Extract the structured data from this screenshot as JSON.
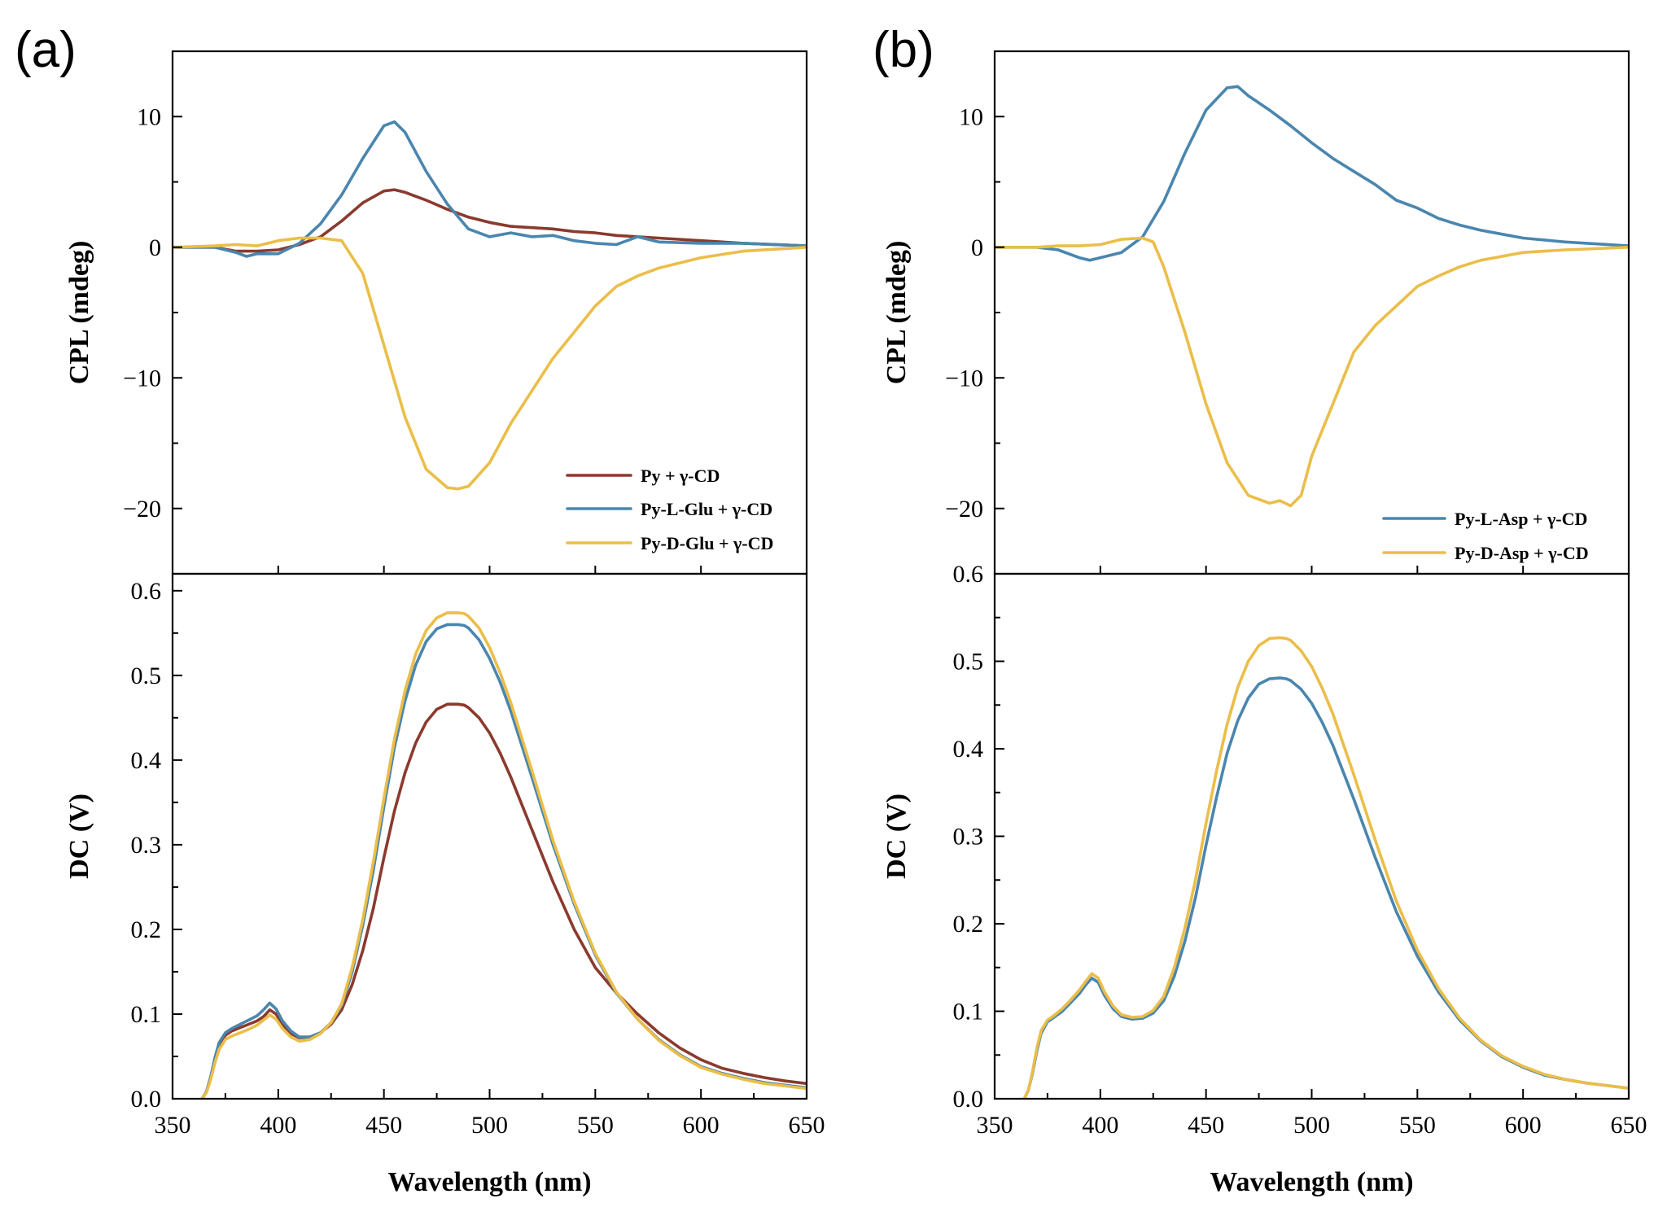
{
  "colors": {
    "py": "#8B3A2E",
    "L": "#4A86AE",
    "D": "#EBBE49"
  },
  "chart_data": [
    {
      "panel": "(a)",
      "type": "line",
      "xlabel": "Wavelength (nm)",
      "xlim": [
        350,
        650
      ],
      "xticks": [
        350,
        400,
        450,
        500,
        550,
        600,
        650
      ],
      "top": {
        "ylabel": "CPL (mdeg)",
        "ylim": [
          -25,
          15
        ],
        "yticks": [
          10,
          0,
          -10,
          -20
        ],
        "ytick_labels": [
          "10",
          "0",
          "−10",
          "−20"
        ],
        "legend": [
          "Py + γ-CD",
          "Py-L-Glu + γ-CD",
          "Py-D-Glu + γ-CD"
        ],
        "series": [
          {
            "name": "Py + γ-CD",
            "color": "py",
            "x": [
              350,
              370,
              380,
              390,
              400,
              410,
              420,
              430,
              440,
              450,
              455,
              460,
              470,
              480,
              490,
              500,
              510,
              520,
              530,
              540,
              550,
              560,
              580,
              600,
              620,
              650
            ],
            "y": [
              0,
              0,
              -0.3,
              -0.3,
              -0.2,
              0.2,
              0.8,
              2.0,
              3.4,
              4.3,
              4.4,
              4.2,
              3.6,
              2.9,
              2.3,
              1.9,
              1.6,
              1.5,
              1.4,
              1.2,
              1.1,
              0.9,
              0.7,
              0.5,
              0.3,
              0.1
            ]
          },
          {
            "name": "Py-L-Glu + γ-CD",
            "color": "L",
            "x": [
              350,
              370,
              380,
              385,
              390,
              400,
              410,
              420,
              430,
              440,
              450,
              455,
              460,
              470,
              480,
              490,
              500,
              510,
              520,
              530,
              540,
              550,
              560,
              570,
              580,
              600,
              620,
              650
            ],
            "y": [
              0,
              0,
              -0.4,
              -0.7,
              -0.5,
              -0.5,
              0.3,
              1.8,
              4.0,
              6.8,
              9.3,
              9.6,
              8.8,
              5.8,
              3.3,
              1.4,
              0.8,
              1.1,
              0.8,
              0.9,
              0.5,
              0.3,
              0.2,
              0.8,
              0.4,
              0.3,
              0.3,
              0.1
            ]
          },
          {
            "name": "Py-D-Glu + γ-CD",
            "color": "D",
            "x": [
              350,
              370,
              380,
              390,
              400,
              410,
              420,
              430,
              440,
              450,
              460,
              470,
              480,
              485,
              490,
              500,
              510,
              520,
              530,
              540,
              550,
              560,
              570,
              580,
              590,
              600,
              620,
              650
            ],
            "y": [
              0,
              0.1,
              0.2,
              0.1,
              0.5,
              0.7,
              0.7,
              0.5,
              -2.0,
              -7.5,
              -13.0,
              -17.0,
              -18.4,
              -18.5,
              -18.3,
              -16.5,
              -13.5,
              -11.0,
              -8.5,
              -6.5,
              -4.5,
              -3.0,
              -2.2,
              -1.6,
              -1.2,
              -0.8,
              -0.3,
              0
            ]
          }
        ]
      },
      "bottom": {
        "ylabel": "DC (V)",
        "ylim": [
          0,
          0.62
        ],
        "yticks": [
          0,
          0.1,
          0.2,
          0.3,
          0.4,
          0.5,
          0.6
        ],
        "ytick_labels": [
          "0.0",
          "0.1",
          "0.2",
          "0.3",
          "0.4",
          "0.5",
          "0.6"
        ],
        "series": [
          {
            "name": "Py + γ-CD",
            "color": "py",
            "x": [
              364,
              366,
              368,
              370,
              372,
              375,
              378,
              382,
              386,
              390,
              393,
              396,
              399,
              402,
              406,
              410,
              415,
              420,
              425,
              430,
              435,
              440,
              445,
              450,
              455,
              460,
              465,
              470,
              475,
              480,
              485,
              488,
              490,
              495,
              500,
              505,
              510,
              520,
              530,
              540,
              550,
              560,
              570,
              580,
              590,
              600,
              610,
              620,
              630,
              640,
              650
            ],
            "y": [
              0,
              0.008,
              0.025,
              0.045,
              0.062,
              0.075,
              0.08,
              0.084,
              0.088,
              0.092,
              0.097,
              0.105,
              0.1,
              0.088,
              0.077,
              0.072,
              0.073,
              0.078,
              0.088,
              0.105,
              0.135,
              0.175,
              0.225,
              0.285,
              0.34,
              0.385,
              0.42,
              0.445,
              0.46,
              0.466,
              0.466,
              0.465,
              0.462,
              0.45,
              0.432,
              0.408,
              0.38,
              0.318,
              0.256,
              0.2,
              0.155,
              0.125,
              0.1,
              0.078,
              0.06,
              0.046,
              0.036,
              0.03,
              0.025,
              0.021,
              0.018
            ]
          },
          {
            "name": "Py-L-Glu + γ-CD",
            "color": "L",
            "x": [
              364,
              366,
              368,
              370,
              372,
              375,
              378,
              382,
              386,
              390,
              393,
              396,
              399,
              402,
              406,
              410,
              415,
              420,
              425,
              430,
              435,
              440,
              445,
              450,
              455,
              460,
              465,
              470,
              475,
              480,
              485,
              488,
              490,
              495,
              500,
              505,
              510,
              520,
              530,
              540,
              550,
              560,
              570,
              580,
              590,
              600,
              610,
              620,
              630,
              640,
              650
            ],
            "y": [
              0,
              0.008,
              0.025,
              0.048,
              0.066,
              0.078,
              0.083,
              0.088,
              0.093,
              0.098,
              0.105,
              0.113,
              0.106,
              0.092,
              0.08,
              0.073,
              0.073,
              0.078,
              0.09,
              0.11,
              0.15,
              0.205,
              0.27,
              0.345,
              0.415,
              0.47,
              0.512,
              0.54,
              0.555,
              0.56,
              0.56,
              0.559,
              0.556,
              0.542,
              0.52,
              0.492,
              0.458,
              0.38,
              0.3,
              0.23,
              0.17,
              0.125,
              0.094,
              0.07,
              0.052,
              0.038,
              0.03,
              0.024,
              0.019,
              0.016,
              0.013
            ]
          },
          {
            "name": "Py-D-Glu + γ-CD",
            "color": "D",
            "x": [
              364,
              366,
              368,
              370,
              372,
              375,
              378,
              382,
              386,
              390,
              393,
              396,
              399,
              402,
              406,
              410,
              415,
              420,
              425,
              430,
              435,
              440,
              445,
              450,
              455,
              460,
              465,
              470,
              475,
              480,
              485,
              488,
              490,
              495,
              500,
              505,
              510,
              520,
              530,
              540,
              550,
              560,
              570,
              580,
              590,
              600,
              610,
              620,
              630,
              640,
              650
            ],
            "y": [
              0,
              0.007,
              0.022,
              0.042,
              0.058,
              0.07,
              0.074,
              0.078,
              0.082,
              0.087,
              0.093,
              0.099,
              0.094,
              0.083,
              0.073,
              0.068,
              0.07,
              0.077,
              0.09,
              0.112,
              0.155,
              0.212,
              0.28,
              0.355,
              0.425,
              0.482,
              0.525,
              0.553,
              0.568,
              0.574,
              0.574,
              0.573,
              0.57,
              0.556,
              0.533,
              0.503,
              0.468,
              0.388,
              0.305,
              0.233,
              0.172,
              0.126,
              0.094,
              0.069,
              0.051,
              0.037,
              0.029,
              0.023,
              0.018,
              0.015,
              0.012
            ]
          }
        ]
      }
    },
    {
      "panel": "(b)",
      "type": "line",
      "xlabel": "Wavelength (nm)",
      "xlim": [
        350,
        650
      ],
      "xticks": [
        350,
        400,
        450,
        500,
        550,
        600,
        650
      ],
      "top": {
        "ylabel": "CPL (mdeg)",
        "ylim": [
          -25,
          15
        ],
        "yticks": [
          10,
          0,
          -10,
          -20
        ],
        "ytick_labels": [
          "10",
          "0",
          "−10",
          "−20"
        ],
        "legend": [
          "Py-L-Asp + γ-CD",
          "Py-D-Asp + γ-CD"
        ],
        "series": [
          {
            "name": "Py-L-Asp + γ-CD",
            "color": "L",
            "x": [
              350,
              370,
              380,
              390,
              395,
              400,
              410,
              420,
              430,
              440,
              450,
              460,
              465,
              470,
              480,
              490,
              500,
              510,
              520,
              530,
              540,
              550,
              560,
              570,
              580,
              590,
              600,
              620,
              650
            ],
            "y": [
              0,
              0,
              -0.2,
              -0.8,
              -1.0,
              -0.8,
              -0.4,
              0.8,
              3.5,
              7.2,
              10.5,
              12.2,
              12.3,
              11.6,
              10.5,
              9.3,
              8.0,
              6.8,
              5.8,
              4.8,
              3.6,
              3.0,
              2.2,
              1.7,
              1.3,
              1.0,
              0.7,
              0.4,
              0.1
            ]
          },
          {
            "name": "Py-D-Asp + γ-CD",
            "color": "D",
            "x": [
              350,
              370,
              380,
              390,
              400,
              410,
              420,
              425,
              430,
              440,
              450,
              460,
              470,
              480,
              485,
              490,
              495,
              500,
              510,
              520,
              530,
              540,
              550,
              560,
              570,
              580,
              590,
              600,
              620,
              650
            ],
            "y": [
              0,
              0,
              0.1,
              0.1,
              0.2,
              0.6,
              0.7,
              0.4,
              -1.5,
              -6.5,
              -12.0,
              -16.5,
              -19.0,
              -19.6,
              -19.4,
              -19.8,
              -19.0,
              -16.0,
              -12.0,
              -8.0,
              -6.0,
              -4.5,
              -3.0,
              -2.2,
              -1.5,
              -1.0,
              -0.7,
              -0.4,
              -0.2,
              0
            ]
          }
        ]
      },
      "bottom": {
        "ylabel": "DC (V)",
        "ylim": [
          0,
          0.6
        ],
        "yticks": [
          0,
          0.1,
          0.2,
          0.3,
          0.4,
          0.5,
          0.6
        ],
        "ytick_labels": [
          "0.0",
          "0.1",
          "0.2",
          "0.3",
          "0.4",
          "0.5",
          "0.6"
        ],
        "series": [
          {
            "name": "Py-L-Asp + γ-CD",
            "color": "L",
            "x": [
              364,
              366,
              368,
              370,
              372,
              375,
              378,
              382,
              386,
              390,
              393,
              396,
              399,
              402,
              406,
              410,
              415,
              420,
              425,
              430,
              435,
              440,
              445,
              450,
              455,
              460,
              465,
              470,
              475,
              480,
              485,
              488,
              490,
              495,
              500,
              505,
              510,
              520,
              530,
              540,
              550,
              560,
              570,
              580,
              590,
              600,
              610,
              620,
              630,
              640,
              650
            ],
            "y": [
              0,
              0.01,
              0.03,
              0.055,
              0.075,
              0.088,
              0.093,
              0.1,
              0.11,
              0.12,
              0.13,
              0.138,
              0.133,
              0.118,
              0.103,
              0.094,
              0.091,
              0.092,
              0.098,
              0.112,
              0.14,
              0.18,
              0.23,
              0.29,
              0.345,
              0.395,
              0.432,
              0.458,
              0.474,
              0.48,
              0.481,
              0.48,
              0.478,
              0.468,
              0.452,
              0.43,
              0.404,
              0.342,
              0.276,
              0.214,
              0.163,
              0.122,
              0.09,
              0.066,
              0.048,
              0.036,
              0.027,
              0.022,
              0.018,
              0.015,
              0.012
            ]
          },
          {
            "name": "Py-D-Asp + γ-CD",
            "color": "D",
            "x": [
              364,
              366,
              368,
              370,
              372,
              375,
              378,
              382,
              386,
              390,
              393,
              396,
              399,
              402,
              406,
              410,
              415,
              420,
              425,
              430,
              435,
              440,
              445,
              450,
              455,
              460,
              465,
              470,
              475,
              480,
              485,
              488,
              490,
              495,
              500,
              505,
              510,
              520,
              530,
              540,
              550,
              560,
              570,
              580,
              590,
              600,
              610,
              620,
              630,
              640,
              650
            ],
            "y": [
              0,
              0.01,
              0.032,
              0.058,
              0.078,
              0.09,
              0.095,
              0.103,
              0.113,
              0.124,
              0.134,
              0.143,
              0.138,
              0.122,
              0.106,
              0.096,
              0.093,
              0.094,
              0.101,
              0.117,
              0.15,
              0.195,
              0.25,
              0.315,
              0.375,
              0.428,
              0.47,
              0.5,
              0.518,
              0.526,
              0.527,
              0.526,
              0.524,
              0.512,
              0.494,
              0.469,
              0.44,
              0.37,
              0.296,
              0.226,
              0.17,
              0.126,
              0.092,
              0.067,
              0.049,
              0.037,
              0.028,
              0.022,
              0.018,
              0.015,
              0.012
            ]
          }
        ]
      }
    }
  ]
}
